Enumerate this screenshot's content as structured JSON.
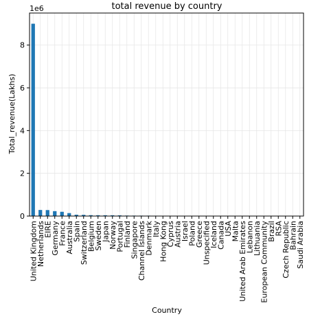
{
  "chart_data": {
    "type": "bar",
    "title": "total revenue by country",
    "xlabel": "Country",
    "ylabel": "Total_revenue(Lakhs)",
    "y_offset_label": "1e6",
    "y_multiplier": 1000000,
    "ylim": [
      0,
      9500000
    ],
    "yticks": [
      0,
      2,
      4,
      6,
      8
    ],
    "grid": true,
    "bar_color": "#1f77b4",
    "categories": [
      "United Kingdom",
      "Netherlands",
      "EIRE",
      "Germany",
      "France",
      "Australia",
      "Spain",
      "Switzerland",
      "Belgium",
      "Sweden",
      "Japan",
      "Norway",
      "Portugal",
      "Finland",
      "Singapore",
      "Channel Islands",
      "Denmark",
      "Italy",
      "Hong Kong",
      "Cyprus",
      "Austria",
      "Israel",
      "Poland",
      "Greece",
      "Unspecified",
      "Iceland",
      "Canada",
      "USA",
      "Malta",
      "United Arab Emirates",
      "Lebanon",
      "Lithuania",
      "European Community",
      "Brazil",
      "RSA",
      "Czech Republic",
      "Bahrain",
      "Saudi Arabia"
    ],
    "values": [
      9000000,
      285000,
      280000,
      230000,
      200000,
      138000,
      62000,
      57000,
      41000,
      38000,
      37000,
      36000,
      33000,
      23000,
      21000,
      20000,
      18900,
      17000,
      10000,
      13600,
      10200,
      8000,
      7400,
      4700,
      4700,
      4300,
      3700,
      3500,
      2700,
      1900,
      1700,
      1700,
      1300,
      1100,
      1000,
      800,
      550,
      130
    ]
  }
}
